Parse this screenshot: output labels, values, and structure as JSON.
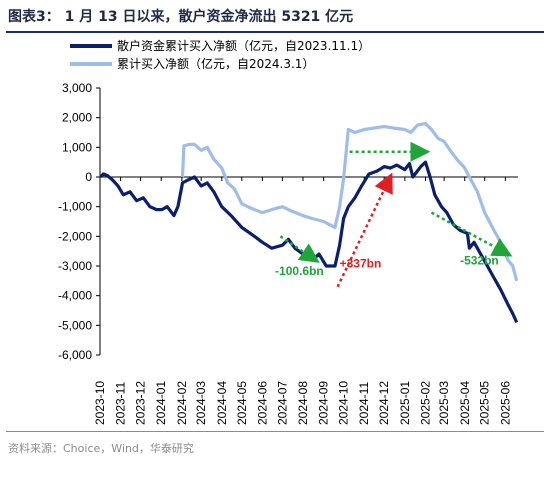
{
  "header": {
    "title": "图表3： 1 月 13 日以来，散户资金净流出 5321 亿元"
  },
  "footer": {
    "source": "资料来源：Choice，Wind，华泰研究"
  },
  "colors": {
    "dark": "#0b1f6e",
    "light": "#9fbde6",
    "green": "#1fa53a",
    "red": "#e02020",
    "axis": "#000000"
  },
  "chart_data": {
    "type": "line",
    "ylim": [
      -6000,
      3000
    ],
    "yticks": [
      3000,
      2000,
      1000,
      0,
      -1000,
      -2000,
      -3000,
      -4000,
      -5000,
      -6000
    ],
    "ytick_labels": [
      "3,000",
      "2,000",
      "1,000",
      "0",
      "-1,000",
      "-2,000",
      "-3,000",
      "-4,000",
      "-5,000",
      "-6,000"
    ],
    "x_range": [
      "2023-10-01",
      "2025-06-20"
    ],
    "xticks": [
      "2023-10",
      "2023-11",
      "2023-12",
      "2024-01",
      "2024-02",
      "2024-03",
      "2024-04",
      "2024-05",
      "2024-06",
      "2024-07",
      "2024-08",
      "2024-09",
      "2024-10",
      "2024-11",
      "2024-12",
      "2025-01",
      "2025-02",
      "2025-03",
      "2025-04",
      "2025-05",
      "2025-06"
    ],
    "legend": {
      "position": "top-left",
      "entries": [
        "散户资金累计买入净额（亿元，自2023.11.1）",
        "累计买入净额（亿元，自2024.3.1）"
      ]
    },
    "series": [
      {
        "name": "散户资金累计买入净额（亿元，自2023.11.1）",
        "color": "#0b1f6e",
        "points": [
          [
            "2023-10-02",
            0
          ],
          [
            "2023-10-06",
            100
          ],
          [
            "2023-10-12",
            50
          ],
          [
            "2023-10-20",
            -100
          ],
          [
            "2023-10-28",
            -300
          ],
          [
            "2023-11-05",
            -600
          ],
          [
            "2023-11-15",
            -500
          ],
          [
            "2023-11-25",
            -800
          ],
          [
            "2023-12-05",
            -700
          ],
          [
            "2023-12-15",
            -1000
          ],
          [
            "2023-12-25",
            -1100
          ],
          [
            "2024-01-02",
            -1100
          ],
          [
            "2024-01-10",
            -1000
          ],
          [
            "2024-01-20",
            -1300
          ],
          [
            "2024-01-26",
            -1000
          ],
          [
            "2024-02-02",
            -200
          ],
          [
            "2024-02-10",
            -100
          ],
          [
            "2024-02-20",
            0
          ],
          [
            "2024-03-01",
            -300
          ],
          [
            "2024-03-10",
            -200
          ],
          [
            "2024-03-20",
            -500
          ],
          [
            "2024-04-01",
            -1000
          ],
          [
            "2024-04-15",
            -1300
          ],
          [
            "2024-05-01",
            -1700
          ],
          [
            "2024-05-20",
            -2000
          ],
          [
            "2024-06-01",
            -2200
          ],
          [
            "2024-06-15",
            -2400
          ],
          [
            "2024-07-01",
            -2300
          ],
          [
            "2024-07-10",
            -2100
          ],
          [
            "2024-07-20",
            -2400
          ],
          [
            "2024-08-01",
            -2600
          ],
          [
            "2024-08-15",
            -2800
          ],
          [
            "2024-08-25",
            -2600
          ],
          [
            "2024-09-05",
            -3000
          ],
          [
            "2024-09-18",
            -3000
          ],
          [
            "2024-09-25",
            -2300
          ],
          [
            "2024-10-01",
            -1400
          ],
          [
            "2024-10-08",
            -1000
          ],
          [
            "2024-10-18",
            -700
          ],
          [
            "2024-10-28",
            -300
          ],
          [
            "2024-11-08",
            100
          ],
          [
            "2024-11-20",
            200
          ],
          [
            "2024-12-01",
            350
          ],
          [
            "2024-12-10",
            300
          ],
          [
            "2024-12-20",
            400
          ],
          [
            "2025-01-01",
            250
          ],
          [
            "2025-01-08",
            450
          ],
          [
            "2025-01-13",
            0
          ],
          [
            "2025-01-25",
            350
          ],
          [
            "2025-02-01",
            500
          ],
          [
            "2025-02-08",
            0
          ],
          [
            "2025-02-15",
            -600
          ],
          [
            "2025-02-25",
            -1000
          ],
          [
            "2025-03-05",
            -1200
          ],
          [
            "2025-03-15",
            -1600
          ],
          [
            "2025-03-25",
            -1800
          ],
          [
            "2025-04-05",
            -1900
          ],
          [
            "2025-04-08",
            -2400
          ],
          [
            "2025-04-15",
            -2200
          ],
          [
            "2025-04-25",
            -2600
          ],
          [
            "2025-05-05",
            -3000
          ],
          [
            "2025-05-15",
            -3400
          ],
          [
            "2025-05-25",
            -3800
          ],
          [
            "2025-06-05",
            -4300
          ],
          [
            "2025-06-12",
            -4600
          ],
          [
            "2025-06-18",
            -4900
          ]
        ]
      },
      {
        "name": "累计买入净额（亿元，自2024.3.1）",
        "color": "#9fbde6",
        "points": [
          [
            "2024-02-02",
            0
          ],
          [
            "2024-02-04",
            1050
          ],
          [
            "2024-02-12",
            1100
          ],
          [
            "2024-02-20",
            1100
          ],
          [
            "2024-03-01",
            900
          ],
          [
            "2024-03-10",
            1000
          ],
          [
            "2024-03-20",
            600
          ],
          [
            "2024-04-01",
            300
          ],
          [
            "2024-04-10",
            -200
          ],
          [
            "2024-04-20",
            -400
          ],
          [
            "2024-05-01",
            -900
          ],
          [
            "2024-05-10",
            -1000
          ],
          [
            "2024-05-20",
            -1100
          ],
          [
            "2024-06-01",
            -1200
          ],
          [
            "2024-06-15",
            -1100
          ],
          [
            "2024-07-01",
            -1000
          ],
          [
            "2024-07-15",
            -1150
          ],
          [
            "2024-08-01",
            -1300
          ],
          [
            "2024-08-15",
            -1400
          ],
          [
            "2024-09-01",
            -1500
          ],
          [
            "2024-09-18",
            -1700
          ],
          [
            "2024-09-25",
            -1000
          ],
          [
            "2024-10-01",
            -50
          ],
          [
            "2024-10-08",
            1600
          ],
          [
            "2024-10-18",
            1500
          ],
          [
            "2024-11-01",
            1600
          ],
          [
            "2024-11-15",
            1650
          ],
          [
            "2024-12-01",
            1700
          ],
          [
            "2024-12-15",
            1650
          ],
          [
            "2025-01-01",
            1600
          ],
          [
            "2025-01-10",
            1500
          ],
          [
            "2025-01-20",
            1750
          ],
          [
            "2025-02-01",
            1800
          ],
          [
            "2025-02-10",
            1600
          ],
          [
            "2025-02-20",
            1300
          ],
          [
            "2025-03-01",
            1200
          ],
          [
            "2025-03-10",
            900
          ],
          [
            "2025-03-20",
            600
          ],
          [
            "2025-04-01",
            300
          ],
          [
            "2025-04-08",
            0
          ],
          [
            "2025-04-20",
            -500
          ],
          [
            "2025-05-01",
            -1200
          ],
          [
            "2025-05-15",
            -1800
          ],
          [
            "2025-05-25",
            -2200
          ],
          [
            "2025-06-05",
            -2800
          ],
          [
            "2025-06-12",
            -3000
          ],
          [
            "2025-06-18",
            -3500
          ]
        ]
      }
    ],
    "annotations": [
      {
        "text": "-100.6bn",
        "color": "#1fa53a",
        "from": [
          "2024-06-28",
          -2000
        ],
        "to": [
          "2024-08-20",
          -2800
        ]
      },
      {
        "text": "+337bn",
        "color": "#e02020",
        "from": [
          "2024-09-22",
          -3700
        ],
        "to": [
          "2024-12-10",
          0
        ]
      },
      {
        "text": "-532bn",
        "color": "#1fa53a",
        "from": [
          "2025-02-10",
          -1200
        ],
        "to": [
          "2025-06-05",
          -2600
        ]
      },
      {
        "text": "",
        "color": "#1fa53a",
        "from": [
          "2024-10-10",
          850
        ],
        "to": [
          "2025-02-01",
          850
        ]
      }
    ],
    "annotation_label_dates": [
      [
        "2024-06-20",
        -3300
      ],
      [
        "2024-09-25",
        -3050
      ],
      [
        "2025-03-25",
        -2950
      ]
    ]
  }
}
